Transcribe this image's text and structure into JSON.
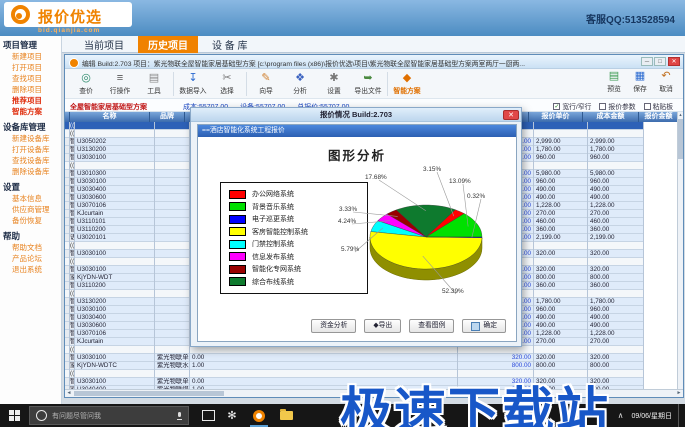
{
  "banner": {
    "logo_title": "报价优选",
    "logo_url": "bid.qianjia.com",
    "support": "客服QQ:513528594",
    "accent_color": "#f08300"
  },
  "menu_tabs": [
    {
      "label": "当前项目",
      "active": false
    },
    {
      "label": "历史项目",
      "active": true
    },
    {
      "label": "设 备 库",
      "active": false
    }
  ],
  "sidebar": {
    "sections": [
      {
        "title": "项目管理",
        "items": [
          {
            "label": "新建项目"
          },
          {
            "label": "打开项目"
          },
          {
            "label": "查找项目"
          },
          {
            "label": "删除项目"
          },
          {
            "label": "推荐项目",
            "highlight": true
          },
          {
            "label": "智能方案",
            "highlight": true
          }
        ]
      },
      {
        "title": "设备库管理",
        "items": [
          {
            "label": "新建设备库"
          },
          {
            "label": "打开设备库"
          },
          {
            "label": "查找设备库"
          },
          {
            "label": "删除设备库"
          }
        ]
      },
      {
        "title": "设置",
        "items": [
          {
            "label": "基本信息"
          },
          {
            "label": "供应商管理"
          },
          {
            "label": "备份恢复"
          }
        ]
      },
      {
        "title": "帮助",
        "items": [
          {
            "label": "帮助文档"
          },
          {
            "label": "产品论坛"
          },
          {
            "label": "退出系统"
          }
        ]
      }
    ]
  },
  "window": {
    "title": "编辑  Build:2.703  项目：紫光物联全屋智能家居基础型方案  [c:\\program files (x86)\\报价优选\\项目\\紫光物联全屋智能家居基础型方案两室两厅一厨两...",
    "toolbar": [
      "查价",
      "行操作",
      "工具",
      "数据导入",
      "选择",
      "向导",
      "分析",
      "设置",
      "导出文件",
      "智能方案"
    ],
    "toolbar_right": [
      "预览",
      "保存",
      "取消"
    ],
    "breadcrumb": "全屋智能家居基础型方案",
    "stats": [
      "成本:55707.00",
      "设备:55707.00",
      "总报价:55707.00"
    ],
    "checkboxes": [
      {
        "label": "宽行/窄行",
        "checked": true
      },
      {
        "label": "报价参数",
        "checked": false
      },
      {
        "label": "粘贴板",
        "checked": false
      }
    ]
  },
  "table": {
    "headers": [
      "",
      "名称",
      "品牌",
      "",
      "",
      "报价单价",
      "成本金额",
      "报价金额"
    ],
    "rows": [
      [
        "sel",
        "(((◆紫光物联全屋智能",
        "",
        "",
        "",
        "",
        "",
        ""
      ],
      [
        "grp",
        "(((入户)))",
        "",
        "",
        "",
        "",
        "",
        ""
      ],
      [
        "d",
        "智能门锁",
        "U3050202",
        "",
        "",
        "2,999.00",
        "2,999.00",
        "2,999.00"
      ],
      [
        "d",
        "智能情景系统",
        "U3130200",
        "",
        "",
        "1,780.00",
        "1,780.00",
        "1,780.00"
      ],
      [
        "d",
        "智能照明",
        "U3030100",
        "",
        "",
        "960.00",
        "960.00",
        "960.00"
      ],
      [
        "grp",
        "(((客厅)))",
        "",
        "",
        "",
        "",
        "",
        ""
      ],
      [
        "d",
        "智能中控系统",
        "U3010300",
        "",
        "",
        "5,980.00",
        "5,980.00",
        "5,980.00"
      ],
      [
        "d",
        "智能照明",
        "U3030100",
        "",
        "",
        "960.00",
        "960.00",
        "960.00"
      ],
      [
        "d",
        "智能照明",
        "U3030400",
        "",
        "",
        "490.00",
        "490.00",
        "490.00"
      ],
      [
        "d",
        "智能照明",
        "U3030600",
        "",
        "",
        "490.00",
        "490.00",
        "490.00"
      ],
      [
        "d",
        "智能窗帘",
        "U3070106",
        "",
        "",
        "1,228.00",
        "1,228.00",
        "1,228.00"
      ],
      [
        "d",
        "智能窗帘",
        "KJcurtain",
        "",
        "",
        "270.00",
        "270.00",
        "270.00"
      ],
      [
        "d",
        "智能家电控制",
        "U3110101",
        "",
        "",
        "460.00",
        "460.00",
        "460.00"
      ],
      [
        "d",
        "智能家电控制",
        "U3110200",
        "",
        "",
        "360.00",
        "360.00",
        "360.00"
      ],
      [
        "d",
        "语音交互系统",
        "U3020101",
        "",
        "",
        "2,199.00",
        "2,199.00",
        "2,199.00"
      ],
      [
        "grp",
        "(((餐厅)))",
        "",
        "",
        "",
        "",
        "",
        ""
      ],
      [
        "d",
        "智能照明",
        "U3030100",
        "",
        "",
        "320.00",
        "320.00",
        "320.00"
      ],
      [
        "grp",
        "(((厨房)))",
        "",
        "",
        "",
        "",
        "",
        ""
      ],
      [
        "d",
        "智能照明",
        "U3030100",
        "",
        "",
        "320.00",
        "320.00",
        "320.00"
      ],
      [
        "d",
        "家庭安全系统",
        "KjYDN-WDT",
        "",
        "",
        "800.00",
        "800.00",
        "800.00"
      ],
      [
        "d",
        "智能家电控制",
        "U3110200",
        "",
        "",
        "360.00",
        "360.00",
        "360.00"
      ],
      [
        "grp",
        "(((主卧)))",
        "",
        "",
        "",
        "",
        "",
        ""
      ],
      [
        "d",
        "智能情景系统",
        "U3130200",
        "",
        "",
        "1,780.00",
        "1,780.00",
        "1,780.00"
      ],
      [
        "d",
        "智能照明",
        "U3030100",
        "",
        "",
        "960.00",
        "960.00",
        "960.00"
      ],
      [
        "d",
        "智能照明",
        "U3030400",
        "",
        "",
        "490.00",
        "490.00",
        "490.00"
      ],
      [
        "d",
        "智能照明",
        "U3030600",
        "",
        "",
        "490.00",
        "490.00",
        "490.00"
      ],
      [
        "d",
        "智能窗帘",
        "U3070106",
        "",
        "",
        "1,228.00",
        "1,228.00",
        "1,228.00"
      ],
      [
        "d",
        "智能窗帘",
        "KJcurtain",
        "",
        "",
        "270.00",
        "270.00",
        "270.00"
      ],
      [
        "grp",
        "(((主卫)))",
        "",
        "",
        "",
        "",
        "",
        ""
      ],
      [
        "d",
        "智能照明",
        "U3030100",
        "紫光物联单开单控智能开关",
        "0.00",
        "320.00",
        "320.00",
        "320.00"
      ],
      [
        "d",
        "家庭安全系统",
        "KjYDN-WDTC",
        "紫光物联水浸探测器",
        "1.00",
        "800.00",
        "800.00",
        "800.00"
      ],
      [
        "grp",
        "(((客卫)))",
        "",
        "",
        "",
        "",
        "",
        ""
      ],
      [
        "d",
        "智能照明",
        "U3030100",
        "紫光物联单开单控智能开关",
        "0.00",
        "320.00",
        "320.00",
        "320.00"
      ],
      [
        "d",
        "家庭安全系统",
        "U3040400",
        "紫光物联煤气探测器",
        "1.00",
        "800.00",
        "800.00",
        "800.00"
      ],
      [
        "d",
        "家庭安全系统",
        "KjYDN-WDTC",
        "紫光物联水浸探测器",
        "1.00",
        "800.00",
        "800.00",
        "800.00"
      ]
    ]
  },
  "dialog": {
    "title": "报价情况  Build:2.703",
    "inner_title": "==酒店智能化系统工程报价",
    "chart_title": "图形分析",
    "buttons": [
      "资金分析",
      "◆导出",
      "查看图例",
      "确定"
    ]
  },
  "chart_data": {
    "type": "pie",
    "title": "图形分析",
    "legend_position": "left",
    "labels_format": "percent",
    "series": [
      {
        "name": "办公网络系统",
        "value": 3.15,
        "color": "#ff0000"
      },
      {
        "name": "背景音乐系统",
        "value": 13.09,
        "color": "#00e000"
      },
      {
        "name": "电子巡更系统",
        "value": 0.32,
        "color": "#0000ff"
      },
      {
        "name": "客房智能控制系统",
        "value": 52.39,
        "color": "#ffff00"
      },
      {
        "name": "门禁控制系统",
        "value": 5.79,
        "color": "#00ffff"
      },
      {
        "name": "信息发布系统",
        "value": 4.24,
        "color": "#ff00ff"
      },
      {
        "name": "智能化专网系统",
        "value": 3.33,
        "color": "#990000"
      },
      {
        "name": "综合布线系统",
        "value": 17.68,
        "color": "#0e7a2e"
      }
    ]
  },
  "taskbar": {
    "search_placeholder": "有问题尽管问我",
    "date": "09/06/星期日"
  },
  "watermark": "极速下载站"
}
